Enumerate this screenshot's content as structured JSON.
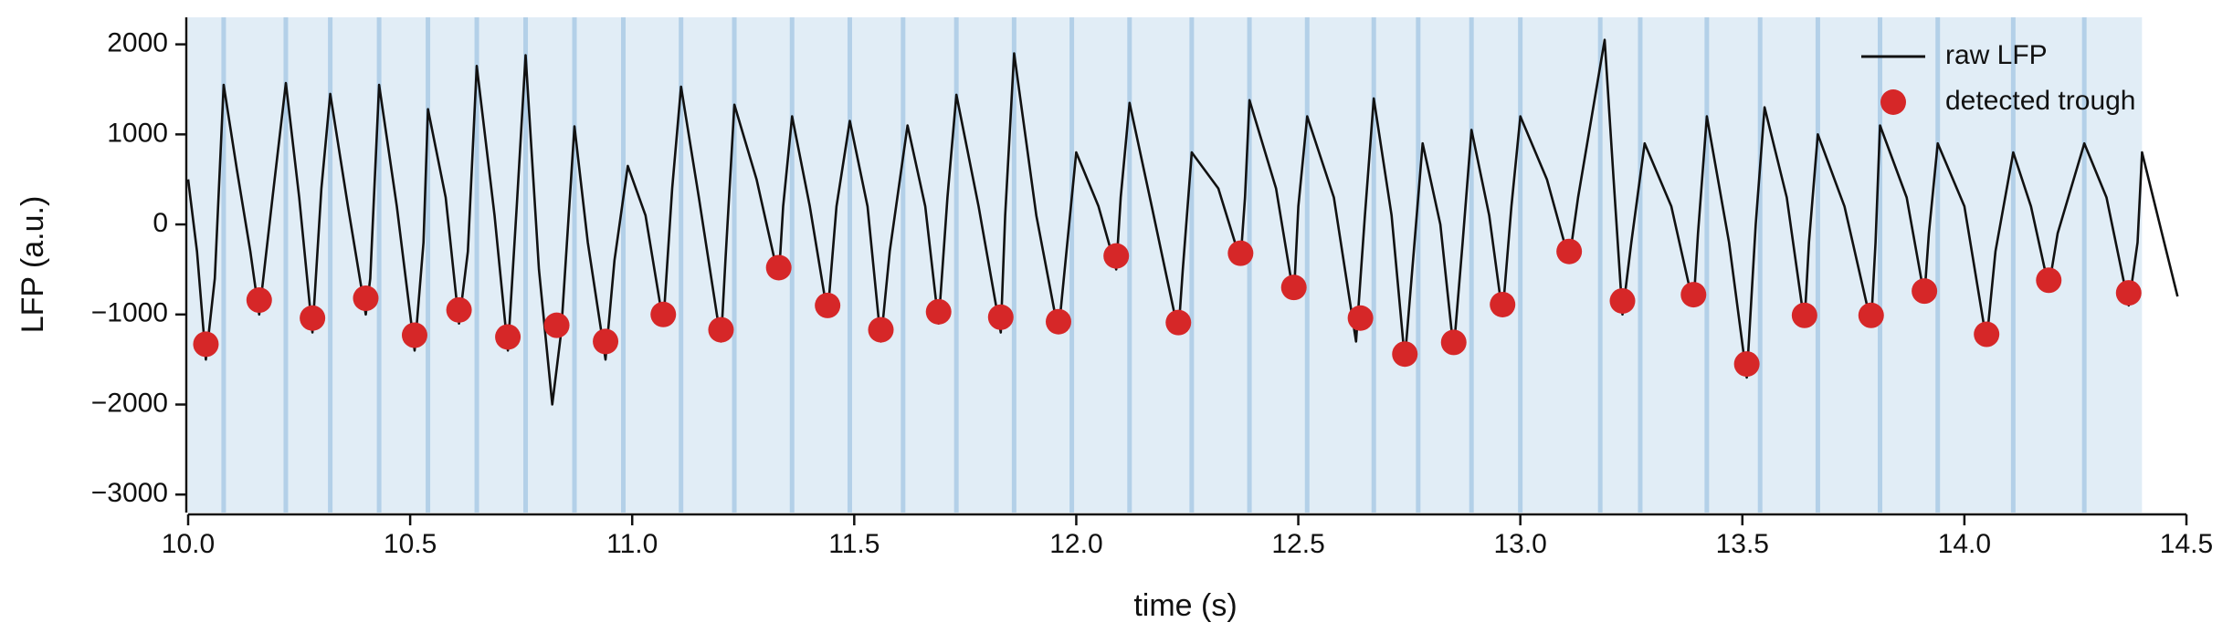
{
  "chart_data": {
    "type": "line",
    "xlabel": "time (s)",
    "ylabel": "LFP (a.u.)",
    "xlim": [
      10.0,
      14.5
    ],
    "ylim": [
      -3200,
      2300
    ],
    "xticks": [
      {
        "value": 10.0,
        "label": "10.0"
      },
      {
        "value": 10.5,
        "label": "10.5"
      },
      {
        "value": 11.0,
        "label": "11.0"
      },
      {
        "value": 11.5,
        "label": "11.5"
      },
      {
        "value": 12.0,
        "label": "12.0"
      },
      {
        "value": 12.5,
        "label": "12.5"
      },
      {
        "value": 13.0,
        "label": "13.0"
      },
      {
        "value": 13.5,
        "label": "13.5"
      },
      {
        "value": 14.0,
        "label": "14.0"
      },
      {
        "value": 14.5,
        "label": "14.5"
      }
    ],
    "yticks": [
      2000,
      1000,
      0,
      {
        "value": -1000,
        "label": "−1000"
      },
      {
        "value": -2000,
        "label": "−2000"
      },
      {
        "value": -3000,
        "label": "−3000"
      }
    ],
    "legend": "upper right",
    "shading": {
      "color": "#e1edf6",
      "line_color": "#b3d0e8",
      "span": [
        10.0,
        14.4
      ],
      "boundaries": [
        10.08,
        10.22,
        10.32,
        10.43,
        10.54,
        10.65,
        10.76,
        10.87,
        10.98,
        11.11,
        11.23,
        11.36,
        11.49,
        11.61,
        11.73,
        11.86,
        11.99,
        12.12,
        12.26,
        12.39,
        12.52,
        12.67,
        12.77,
        12.89,
        13.0,
        13.18,
        13.27,
        13.42,
        13.54,
        13.67,
        13.81,
        13.94,
        14.11,
        14.27
      ]
    },
    "series": [
      {
        "name": "raw LFP",
        "type": "line",
        "color": "#111111",
        "x": [
          10.0,
          10.02,
          10.04,
          10.06,
          10.08,
          10.11,
          10.14,
          10.16,
          10.19,
          10.22,
          10.25,
          10.28,
          10.3,
          10.32,
          10.36,
          10.4,
          10.41,
          10.43,
          10.47,
          10.51,
          10.53,
          10.54,
          10.58,
          10.61,
          10.63,
          10.65,
          10.69,
          10.72,
          10.74,
          10.76,
          10.79,
          10.82,
          10.84,
          10.87,
          10.9,
          10.94,
          10.96,
          10.99,
          11.03,
          11.07,
          11.09,
          11.11,
          11.15,
          11.2,
          11.21,
          11.23,
          11.28,
          11.33,
          11.34,
          11.36,
          11.4,
          11.44,
          11.46,
          11.49,
          11.53,
          11.56,
          11.58,
          11.62,
          11.66,
          11.69,
          11.71,
          11.73,
          11.78,
          11.83,
          11.84,
          11.86,
          11.91,
          11.96,
          11.98,
          12.0,
          12.05,
          12.09,
          12.1,
          12.12,
          12.17,
          12.23,
          12.24,
          12.26,
          12.32,
          12.37,
          12.38,
          12.39,
          12.45,
          12.49,
          12.5,
          12.52,
          12.58,
          12.63,
          12.65,
          12.67,
          12.71,
          12.74,
          12.76,
          12.78,
          12.82,
          12.85,
          12.87,
          12.89,
          12.93,
          12.96,
          12.98,
          13.0,
          13.06,
          13.11,
          13.13,
          13.19,
          13.21,
          13.23,
          13.25,
          13.28,
          13.34,
          13.39,
          13.4,
          13.42,
          13.47,
          13.51,
          13.53,
          13.55,
          13.6,
          13.64,
          13.65,
          13.67,
          13.73,
          13.79,
          13.8,
          13.81,
          13.87,
          13.91,
          13.92,
          13.94,
          14.0,
          14.05,
          14.07,
          14.11,
          14.15,
          14.19,
          14.21,
          14.27,
          14.32,
          14.37,
          14.39,
          14.4,
          14.44,
          14.48
        ],
        "values": [
          500,
          -300,
          -1500,
          -600,
          1550,
          600,
          -300,
          -1000,
          300,
          1570,
          300,
          -1200,
          400,
          1450,
          200,
          -1000,
          -600,
          1550,
          200,
          -1400,
          -200,
          1280,
          300,
          -1100,
          -300,
          1760,
          100,
          -1400,
          200,
          1880,
          -500,
          -2000,
          -1200,
          1090,
          -200,
          -1500,
          -400,
          650,
          100,
          -1100,
          400,
          1530,
          300,
          -1300,
          -400,
          1330,
          500,
          -600,
          200,
          1200,
          200,
          -1000,
          200,
          1150,
          200,
          -1300,
          -300,
          1100,
          200,
          -1100,
          300,
          1440,
          200,
          -1200,
          100,
          1900,
          100,
          -1200,
          -200,
          800,
          200,
          -500,
          300,
          1350,
          200,
          -1200,
          -500,
          800,
          400,
          -400,
          300,
          1380,
          400,
          -800,
          200,
          1200,
          300,
          -1300,
          100,
          1400,
          100,
          -1500,
          -300,
          900,
          0,
          -1400,
          -200,
          1050,
          100,
          -1000,
          200,
          1200,
          500,
          -400,
          300,
          2050,
          500,
          -1000,
          -200,
          900,
          200,
          -900,
          -100,
          1200,
          -200,
          -1700,
          0,
          1300,
          300,
          -1100,
          -200,
          1000,
          200,
          -1100,
          -200,
          1100,
          300,
          -800,
          -100,
          900,
          200,
          -1300,
          -300,
          800,
          200,
          -700,
          -100,
          900,
          300,
          -900,
          -200,
          800,
          0,
          -800
        ]
      },
      {
        "name": "detected trough",
        "type": "scatter",
        "color": "#d62728",
        "x": [
          10.04,
          10.16,
          10.28,
          10.4,
          10.51,
          10.61,
          10.72,
          10.83,
          10.94,
          11.07,
          11.2,
          11.33,
          11.44,
          11.56,
          11.69,
          11.83,
          11.96,
          12.09,
          12.23,
          12.37,
          12.49,
          12.64,
          12.74,
          12.85,
          12.96,
          13.11,
          13.23,
          13.39,
          13.51,
          13.64,
          13.79,
          13.91,
          14.05,
          14.19,
          14.37
        ],
        "values": [
          -1330,
          -840,
          -1040,
          -820,
          -1230,
          -950,
          -1250,
          -1120,
          -1300,
          -1000,
          -1170,
          -480,
          -900,
          -1170,
          -970,
          -1030,
          -1080,
          -350,
          -1090,
          -320,
          -700,
          -1040,
          -1440,
          -1310,
          -890,
          -300,
          -850,
          -780,
          -1550,
          -1010,
          -1010,
          -740,
          -1220,
          -620,
          -760
        ]
      }
    ]
  }
}
